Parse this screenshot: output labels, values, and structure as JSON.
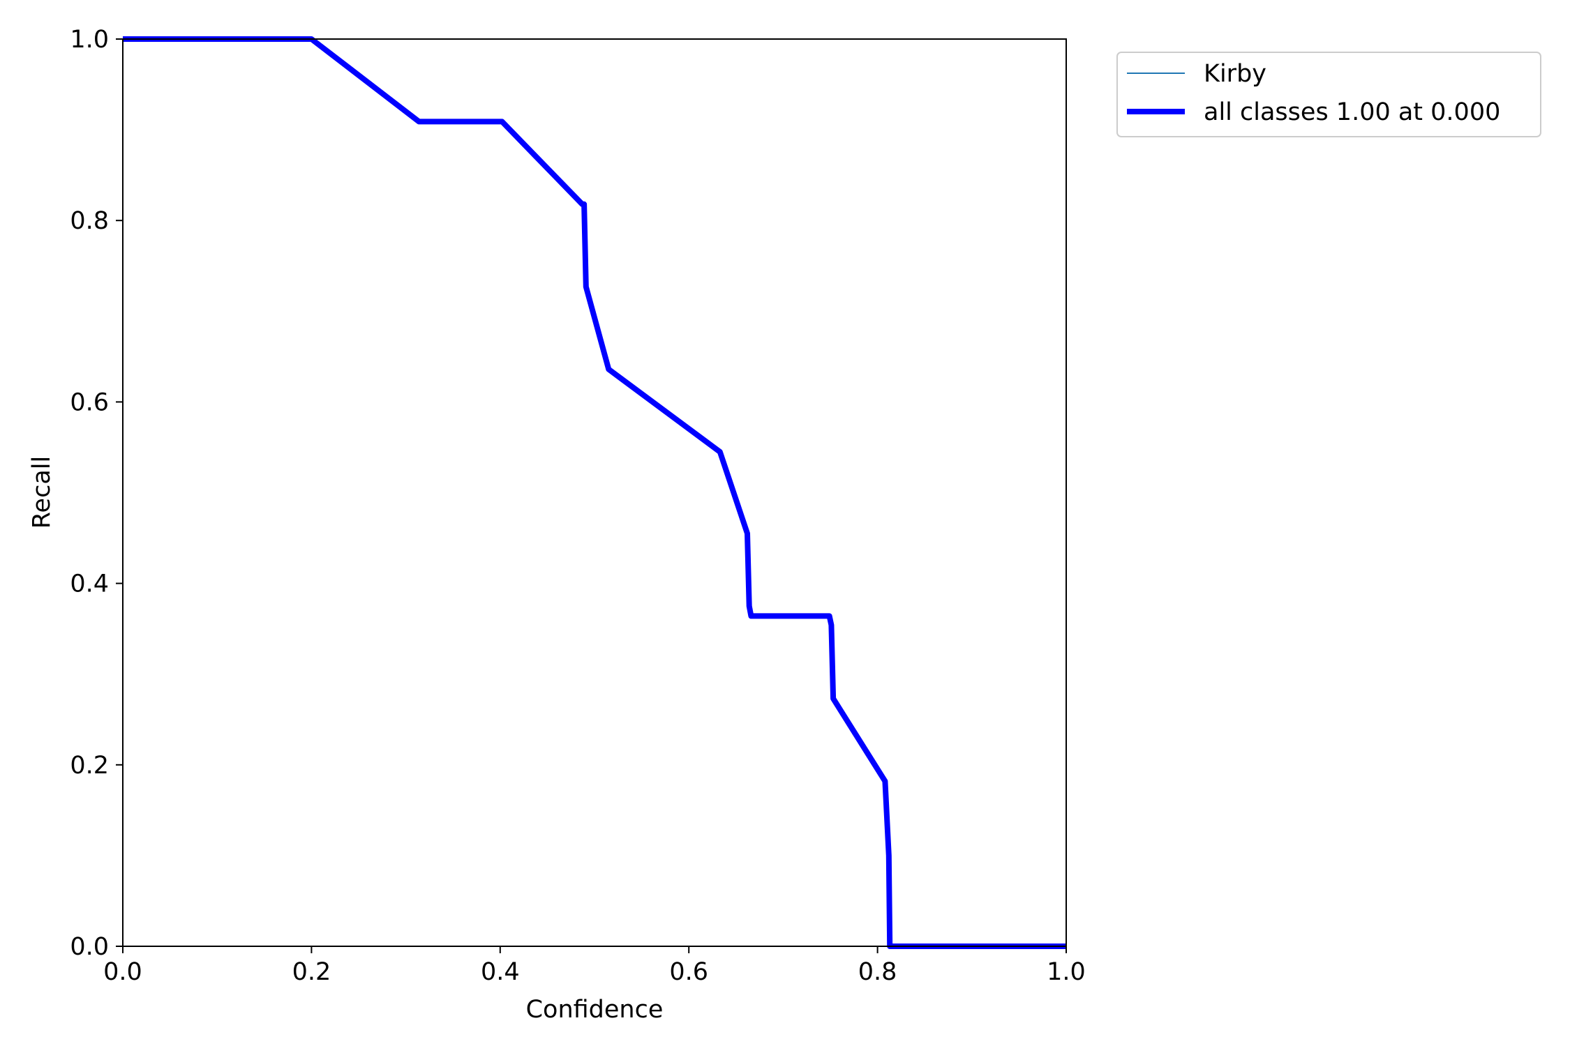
{
  "chart_data": {
    "type": "line",
    "title": "",
    "xlabel": "Confidence",
    "ylabel": "Recall",
    "xlim": [
      0.0,
      1.0
    ],
    "ylim": [
      0.0,
      1.0
    ],
    "xticks": [
      "0.0",
      "0.2",
      "0.4",
      "0.6",
      "0.8",
      "1.0"
    ],
    "yticks": [
      "0.0",
      "0.2",
      "0.4",
      "0.6",
      "0.8",
      "1.0"
    ],
    "grid": false,
    "legend_position": "outside-top-right",
    "series": [
      {
        "name": "Kirby",
        "color": "#1f77b4",
        "line_style": "thin",
        "x": [
          0.0,
          0.2,
          0.314,
          0.402,
          0.487,
          0.489,
          0.491,
          0.515,
          0.633,
          0.662,
          0.664,
          0.666,
          0.749,
          0.751,
          0.753,
          0.808,
          0.812,
          0.813,
          1.0
        ],
        "y": [
          1.0,
          1.0,
          0.909,
          0.909,
          0.818,
          0.818,
          0.727,
          0.636,
          0.545,
          0.455,
          0.375,
          0.364,
          0.364,
          0.354,
          0.273,
          0.182,
          0.1,
          0.0,
          0.0
        ]
      },
      {
        "name": "all classes 1.00 at 0.000",
        "color": "#0000ff",
        "line_style": "thick",
        "x": [
          0.0,
          0.2,
          0.314,
          0.402,
          0.487,
          0.489,
          0.491,
          0.515,
          0.633,
          0.662,
          0.664,
          0.666,
          0.749,
          0.751,
          0.753,
          0.808,
          0.812,
          0.813,
          1.0
        ],
        "y": [
          1.0,
          1.0,
          0.909,
          0.909,
          0.818,
          0.818,
          0.727,
          0.636,
          0.545,
          0.455,
          0.375,
          0.364,
          0.364,
          0.354,
          0.273,
          0.182,
          0.1,
          0.0,
          0.0
        ]
      }
    ]
  }
}
